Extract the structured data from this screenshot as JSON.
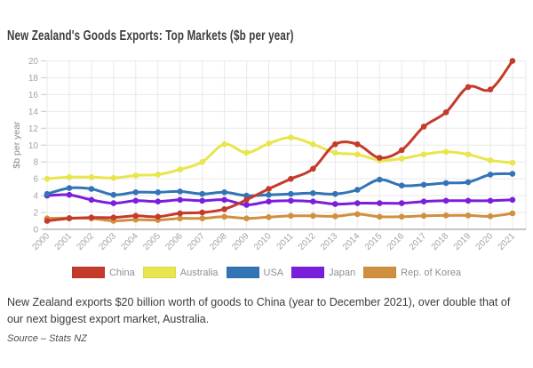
{
  "title": "New Zealand's Goods Exports: Top Markets ($b per year)",
  "caption": "New Zealand exports $20 billion worth of goods to China (year to December 2021), over double that of our next biggest export market, Australia.",
  "source": "Source – Stats NZ",
  "colors": {
    "grid": "#e9e9e9",
    "axis": "#c6c6c6",
    "tick_text": "#a3a3a3",
    "axis_label_text": "#8c8c8c",
    "legend_text": "#8f8f8f",
    "title_text": "#3d3d3d"
  },
  "chart_data": {
    "type": "line",
    "title": "New Zealand's Goods Exports: Top Markets ($b per year)",
    "xlabel": "",
    "ylabel": "$b per year",
    "ylim": [
      0,
      20
    ],
    "ytick_step": 2,
    "grid": true,
    "legend_position": "bottom",
    "point_markers": true,
    "smooth": true,
    "categories": [
      "2000",
      "2001",
      "2002",
      "2003",
      "2004",
      "2005",
      "2006",
      "2007",
      "2008",
      "2009",
      "2010",
      "2011",
      "2012",
      "2013",
      "2014",
      "2015",
      "2016",
      "2017",
      "2018",
      "2019",
      "2020",
      "2021"
    ],
    "series": [
      {
        "name": "China",
        "color": "#c43a2b",
        "values": [
          1.0,
          1.3,
          1.4,
          1.4,
          1.6,
          1.5,
          1.9,
          2.0,
          2.4,
          3.5,
          4.8,
          6.0,
          7.2,
          10.1,
          10.1,
          8.5,
          9.4,
          12.2,
          13.9,
          16.9,
          16.6,
          20.0
        ]
      },
      {
        "name": "Australia",
        "color": "#e8e64c",
        "values": [
          6.0,
          6.2,
          6.2,
          6.1,
          6.4,
          6.5,
          7.1,
          8.0,
          10.1,
          9.1,
          10.2,
          10.9,
          10.1,
          9.1,
          8.9,
          8.2,
          8.4,
          8.9,
          9.2,
          8.9,
          8.2,
          7.9
        ]
      },
      {
        "name": "USA",
        "color": "#3274b5",
        "values": [
          4.2,
          4.9,
          4.8,
          4.1,
          4.4,
          4.4,
          4.5,
          4.2,
          4.4,
          4.0,
          4.1,
          4.2,
          4.3,
          4.2,
          4.7,
          5.9,
          5.2,
          5.3,
          5.5,
          5.6,
          6.5,
          6.6
        ]
      },
      {
        "name": "Japan",
        "color": "#7b1edc",
        "values": [
          4.0,
          4.1,
          3.5,
          3.1,
          3.4,
          3.3,
          3.5,
          3.4,
          3.5,
          2.9,
          3.3,
          3.4,
          3.3,
          3.0,
          3.1,
          3.1,
          3.1,
          3.3,
          3.4,
          3.4,
          3.4,
          3.5
        ]
      },
      {
        "name": "Rep. of Korea",
        "color": "#d0903f",
        "values": [
          1.3,
          1.35,
          1.3,
          1.0,
          1.15,
          1.1,
          1.3,
          1.3,
          1.5,
          1.3,
          1.45,
          1.6,
          1.6,
          1.55,
          1.8,
          1.5,
          1.5,
          1.6,
          1.65,
          1.65,
          1.55,
          1.9
        ]
      }
    ]
  }
}
